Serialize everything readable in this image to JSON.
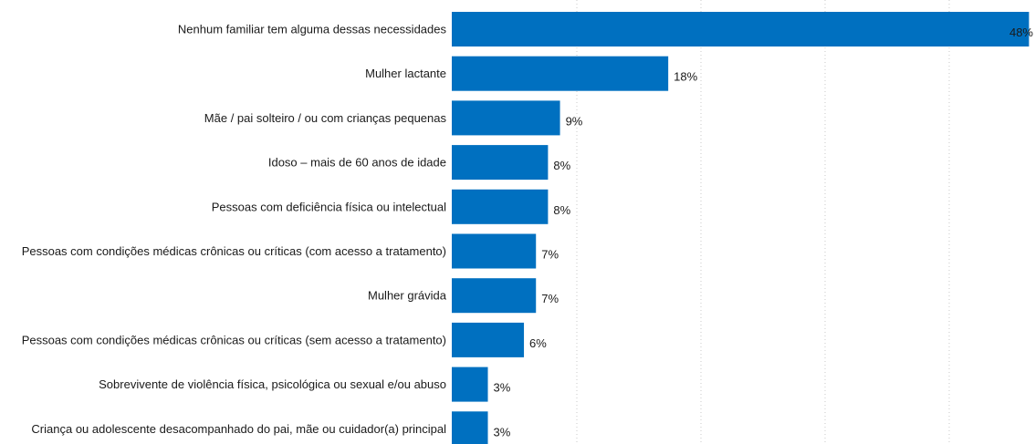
{
  "chart_data": {
    "type": "bar",
    "orientation": "horizontal",
    "title": "",
    "xlabel": "",
    "ylabel": "",
    "xlim": [
      0,
      48.5
    ],
    "grid": true,
    "legend": "none",
    "bar_color": "#0070c0",
    "categories": [
      "Nenhum familiar tem alguma dessas necessidades",
      "Mulher lactante",
      "Mãe / pai solteiro / ou com crianças pequenas",
      "Idoso – mais de 60 anos de idade",
      "Pessoas com deficiência física ou intelectual",
      "Pessoas com condições médicas crônicas ou críticas (com acesso a tratamento)",
      "Mulher grávida",
      "Pessoas com condições médicas crônicas ou críticas (sem acesso a tratamento)",
      "Sobrevivente de violência física, psicológica ou sexual e/ou abuso",
      "Criança ou adolescente desacompanhado do pai, mãe ou cuidador(a) principal"
    ],
    "values": [
      48,
      18,
      9,
      8,
      8,
      7,
      7,
      6,
      3,
      3
    ],
    "value_labels": [
      "48%",
      "18%",
      "9%",
      "8%",
      "8%",
      "7%",
      "7%",
      "6%",
      "3%",
      "3%"
    ]
  }
}
